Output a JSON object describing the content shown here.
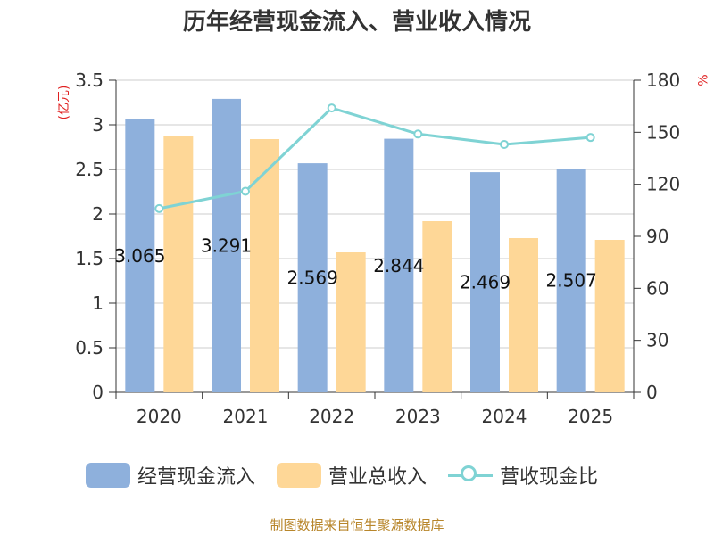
{
  "title": "历年经营现金流入、营业收入情况",
  "source": "制图数据来自恒生聚源数据库",
  "chart_data": {
    "type": "bar",
    "categories": [
      "2020",
      "2021",
      "2022",
      "2023",
      "2024",
      "2025"
    ],
    "series": [
      {
        "name": "经营现金流入",
        "kind": "bar",
        "axis": "left",
        "color": "#8eb0dc",
        "values": [
          3.065,
          3.291,
          2.569,
          2.844,
          2.469,
          2.507
        ],
        "data_labels": [
          "3.065",
          "3.291",
          "2.569",
          "2.844",
          "2.469",
          "2.507"
        ]
      },
      {
        "name": "营业总收入",
        "kind": "bar",
        "axis": "left",
        "color": "#fed797",
        "values": [
          2.88,
          2.84,
          1.57,
          1.92,
          1.73,
          1.71
        ]
      },
      {
        "name": "营收现金比",
        "kind": "line",
        "axis": "right",
        "color": "#7fd3d4",
        "values": [
          106,
          116,
          164,
          149,
          143,
          147
        ]
      }
    ],
    "y_left": {
      "label": "(亿元)",
      "min": 0,
      "max": 3.5,
      "ticks": [
        "0",
        "0.5",
        "1",
        "1.5",
        "2",
        "2.5",
        "3",
        "3.5"
      ]
    },
    "y_right": {
      "label": "%",
      "min": 0,
      "max": 180,
      "ticks": [
        "0",
        "30",
        "60",
        "90",
        "120",
        "150",
        "180"
      ]
    },
    "grid": true,
    "legend": "bottom"
  }
}
